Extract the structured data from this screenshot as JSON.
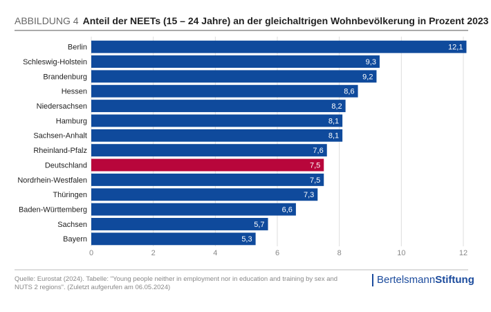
{
  "chart_data": {
    "type": "hbar",
    "figure_label": "ABBILDUNG 4",
    "title": "Anteil der NEETs (15 – 24 Jahre) an der gleichaltrigen Wohnbevölkerung in Prozent 2023",
    "categories": [
      "Berlin",
      "Schleswig-Holstein",
      "Brandenburg",
      "Hessen",
      "Niedersachsen",
      "Hamburg",
      "Sachsen-Anhalt",
      "Rheinland-Pfalz",
      "Deutschland",
      "Nordrhein-Westfalen",
      "Thüringen",
      "Baden-Württemberg",
      "Sachsen",
      "Bayern"
    ],
    "values": [
      12.1,
      9.3,
      9.2,
      8.6,
      8.2,
      8.1,
      8.1,
      7.6,
      7.5,
      7.5,
      7.3,
      6.6,
      5.7,
      5.3
    ],
    "value_labels": [
      "12,1",
      "9,3",
      "9,2",
      "8,6",
      "8,2",
      "8,1",
      "8,1",
      "7,6",
      "7,5",
      "7,5",
      "7,3",
      "6,6",
      "5,7",
      "5,3"
    ],
    "colors": [
      "#0f4a9c",
      "#0f4a9c",
      "#0f4a9c",
      "#0f4a9c",
      "#0f4a9c",
      "#0f4a9c",
      "#0f4a9c",
      "#0f4a9c",
      "#b8063b",
      "#0f4a9c",
      "#0f4a9c",
      "#0f4a9c",
      "#0f4a9c",
      "#0f4a9c"
    ],
    "xlim": [
      0,
      12
    ],
    "xticks": [
      0,
      2,
      4,
      6,
      8,
      10,
      12
    ],
    "grid": true,
    "source": "Quelle: Eurostat (2024). Tabelle: \"Young people neither in employment nor in education and training by sex and NUTS 2 regions\". (Zuletzt aufgerufen am 06.05.2024)",
    "logo": {
      "first": "Bertelsmann",
      "second": "Stiftung"
    }
  }
}
